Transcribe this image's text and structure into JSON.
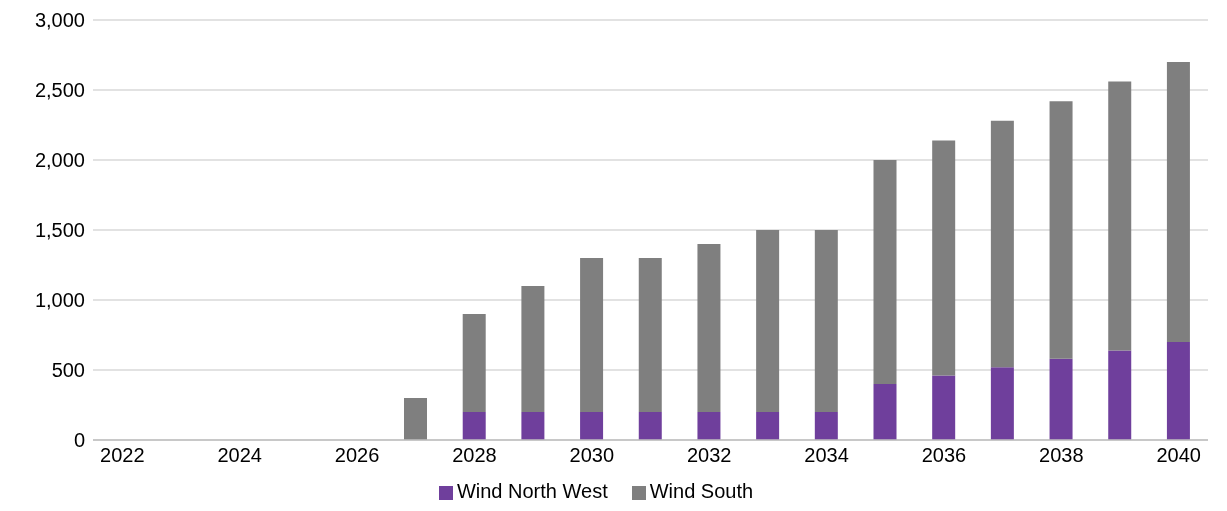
{
  "chart_data": {
    "type": "bar",
    "stacked": true,
    "categories": [
      "2022",
      null,
      "2024",
      null,
      "2026",
      null,
      "2028",
      null,
      "2030",
      null,
      "2032",
      null,
      "2034",
      null,
      "2036",
      null,
      "2038",
      null,
      "2040"
    ],
    "series": [
      {
        "name": "Wind North West",
        "color": "#6f3f9c",
        "values": [
          0,
          0,
          0,
          0,
          0,
          0,
          200,
          200,
          200,
          200,
          200,
          200,
          200,
          400,
          460,
          520,
          580,
          640,
          700
        ]
      },
      {
        "name": "Wind South",
        "color": "#7f7f7f",
        "values": [
          0,
          0,
          0,
          0,
          0,
          300,
          700,
          900,
          1100,
          1100,
          1200,
          1300,
          1300,
          1600,
          1680,
          1760,
          1840,
          1920,
          2000
        ]
      }
    ],
    "ylim": [
      0,
      3000
    ],
    "yticks": [
      {
        "value": 0,
        "label": "0"
      },
      {
        "value": 500,
        "label": "500"
      },
      {
        "value": 1000,
        "label": "1,000"
      },
      {
        "value": 1500,
        "label": "1,500"
      },
      {
        "value": 2000,
        "label": "2,000"
      },
      {
        "value": 2500,
        "label": "2,500"
      },
      {
        "value": 3000,
        "label": "3,000"
      }
    ],
    "grid": "y",
    "legend": "bottom"
  }
}
